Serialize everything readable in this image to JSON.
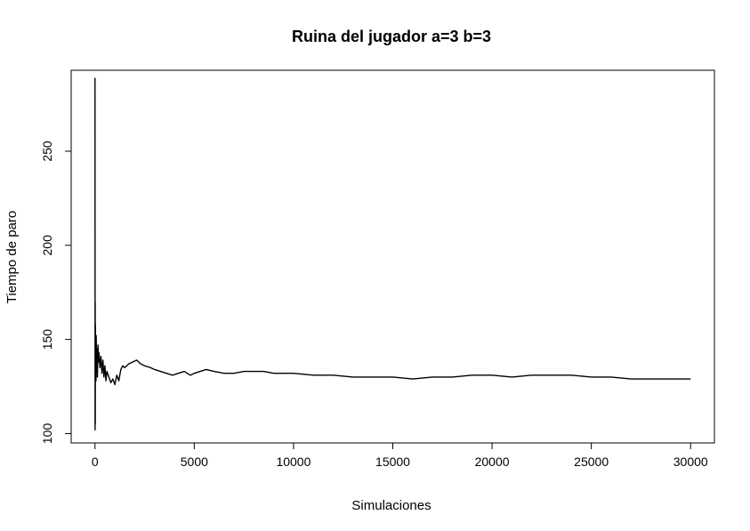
{
  "chart_data": {
    "type": "line",
    "title": "Ruina del jugador a=3 b=3",
    "xlabel": "Simulaciones",
    "ylabel": "Tiempo de paro",
    "xlim": [
      -1200,
      31200
    ],
    "ylim": [
      95,
      293
    ],
    "x_ticks": [
      0,
      5000,
      10000,
      15000,
      20000,
      25000,
      30000
    ],
    "x_tick_labels": [
      "0",
      "5000",
      "10000",
      "15000",
      "20000",
      "25000",
      "30000"
    ],
    "y_ticks": [
      100,
      150,
      200,
      250
    ],
    "y_tick_labels": [
      "100",
      "150",
      "200",
      "250"
    ],
    "grid": false,
    "legend": "none",
    "series": [
      {
        "color": "#000000",
        "x": [
          1,
          5,
          10,
          15,
          20,
          30,
          40,
          50,
          60,
          80,
          100,
          120,
          150,
          180,
          200,
          250,
          300,
          350,
          400,
          450,
          500,
          550,
          600,
          700,
          800,
          900,
          1000,
          1100,
          1200,
          1300,
          1400,
          1500,
          1700,
          1900,
          2100,
          2300,
          2500,
          2800,
          3000,
          3300,
          3600,
          3900,
          4200,
          4500,
          4800,
          5000,
          5300,
          5600,
          6000,
          6500,
          7000,
          7500,
          8000,
          8500,
          9000,
          9500,
          10000,
          11000,
          12000,
          13000,
          14000,
          15000,
          16000,
          17000,
          18000,
          19000,
          20000,
          21000,
          22000,
          23000,
          24000,
          25000,
          26000,
          27000,
          28000,
          29000,
          30000
        ],
        "y": [
          289,
          102,
          170,
          105,
          158,
          140,
          150,
          128,
          152,
          135,
          145,
          130,
          147,
          138,
          143,
          135,
          141,
          132,
          139,
          130,
          136,
          128,
          133,
          130,
          127,
          129,
          126,
          131,
          128,
          134,
          136,
          135,
          137,
          138,
          139,
          137,
          136,
          135,
          134,
          133,
          132,
          131,
          132,
          133,
          131,
          132,
          133,
          134,
          133,
          132,
          132,
          133,
          133,
          133,
          132,
          132,
          132,
          131,
          131,
          130,
          130,
          130,
          129,
          130,
          130,
          131,
          131,
          130,
          131,
          131,
          131,
          130,
          130,
          129,
          129,
          129,
          129
        ]
      }
    ]
  }
}
